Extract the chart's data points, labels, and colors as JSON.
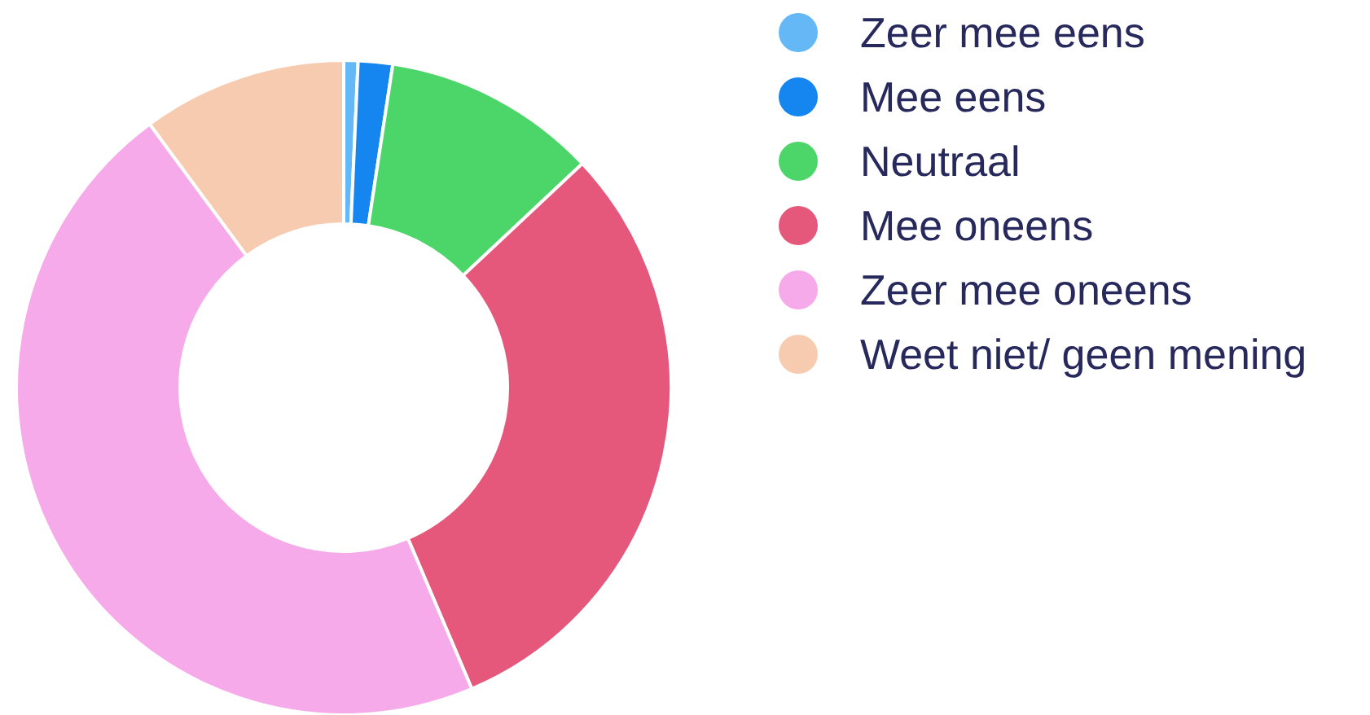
{
  "chart_data": {
    "type": "donut",
    "categories": [
      "Zeer mee eens",
      "Mee eens",
      "Neutraal",
      "Mee oneens",
      "Zeer mee oneens",
      "Weet niet/ geen mening"
    ],
    "values": [
      0.7,
      1.7,
      10.6,
      30.6,
      46.3,
      10.1
    ],
    "colors": [
      "#64b8f5",
      "#1585f0",
      "#4cd66a",
      "#e5587c",
      "#f6aaea",
      "#f7cbb0"
    ],
    "legend": "top right"
  }
}
